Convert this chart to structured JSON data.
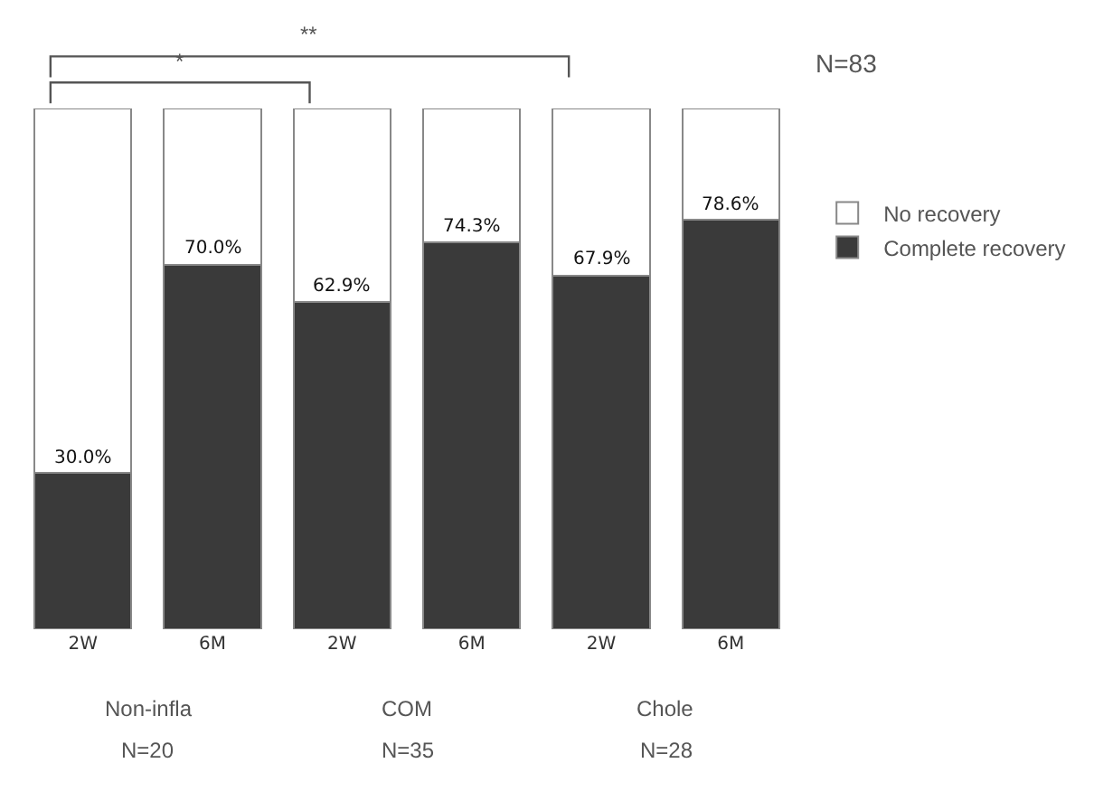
{
  "chart_data": {
    "type": "bar",
    "stacked": true,
    "categories": [
      "2W",
      "6M",
      "2W",
      "6M",
      "2W",
      "6M"
    ],
    "series": [
      {
        "name": "Complete recovery",
        "color": "#3a3a3a",
        "values": [
          30.0,
          70.0,
          62.9,
          74.3,
          67.9,
          78.6
        ],
        "value_labels": [
          "30.0%",
          "70.0%",
          "62.9%",
          "74.3%",
          "67.9%",
          "78.6%"
        ]
      },
      {
        "name": "No recovery",
        "color": "#ffffff",
        "values": [
          70.0,
          30.0,
          37.1,
          25.7,
          32.1,
          21.4
        ]
      }
    ],
    "ylim": [
      0,
      100
    ],
    "tick_labels": "x",
    "grid": false,
    "legend": "right",
    "annotations": [
      "**",
      "*",
      "N=83",
      "Non-infla",
      "N=20",
      "COM",
      "N=35",
      "Chole",
      "N=28"
    ]
  }
}
